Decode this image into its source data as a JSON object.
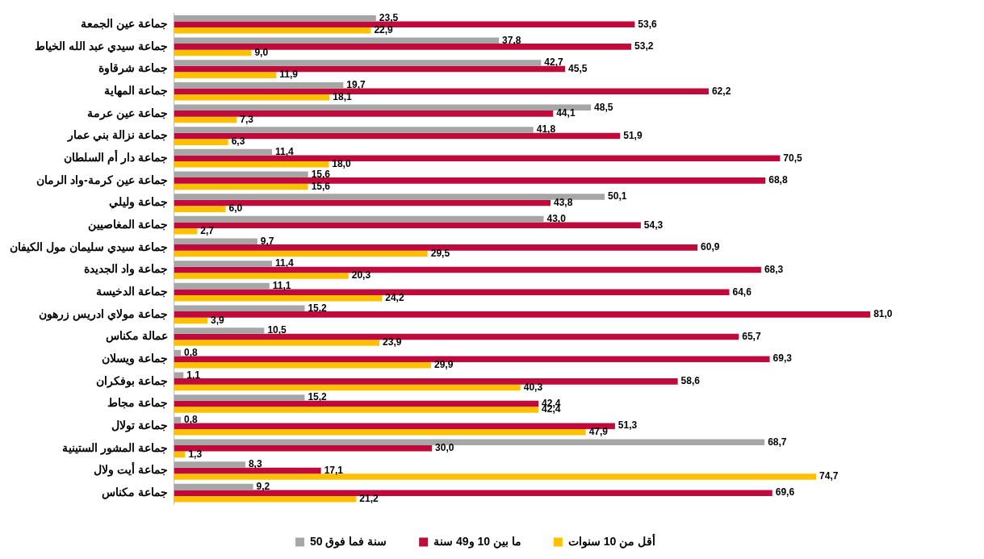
{
  "chart_data": {
    "type": "bar",
    "orientation": "horizontal",
    "legend": "bottom",
    "grid": false,
    "tick_labels": "y",
    "categories": [
      "جماعة عين الجمعة",
      "جماعة سيدي عبد الله الخياط",
      "جماعة شرقاوة",
      "جماعة المهاية",
      "جماعة عين عرمة",
      "جماعة نزالة بني عمار",
      "جماعة دار أم السلطان",
      "جماعة عين كرمة-واد الرمان",
      "جماعة وليلي",
      "جماعة المغاصيين",
      "جماعة سيدي سليمان مول الكيفان",
      "جماعة واد الجديدة",
      "جماعة الدخيسة",
      "جماعة مولاي ادريس زرهون",
      "عمالة مكناس",
      "جماعة ويسلان",
      "جماعة بوفكران",
      "جماعة مجاط",
      "جماعة تولال",
      "جماعة المشور الستينية",
      "جماعة أيت ولال",
      "جماعة مكناس"
    ],
    "series": [
      {
        "name": "50 سنة فما فوق",
        "color": "#a6a6a6",
        "values": [
          23.5,
          37.8,
          42.7,
          19.7,
          48.5,
          41.8,
          11.4,
          15.6,
          50.1,
          43.0,
          9.7,
          11.4,
          11.1,
          15.2,
          10.5,
          0.8,
          1.1,
          15.2,
          0.8,
          68.7,
          8.3,
          9.2
        ],
        "value_labels": [
          "23,5",
          "37,8",
          "42,7",
          "19,7",
          "48,5",
          "41,8",
          "11,4",
          "15,6",
          "50,1",
          "43,0",
          "9,7",
          "11,4",
          "11,1",
          "15,2",
          "10,5",
          "0,8",
          "1,1",
          "15,2",
          "0,8",
          "68,7",
          "8,3",
          "9,2"
        ]
      },
      {
        "name": "ما بين 10 و49 سنة",
        "color": "#c00a3c",
        "values": [
          53.6,
          53.2,
          45.5,
          62.2,
          44.1,
          51.9,
          70.5,
          68.8,
          43.8,
          54.3,
          60.9,
          68.3,
          64.6,
          81.0,
          65.7,
          69.3,
          58.6,
          42.4,
          51.3,
          30.0,
          17.1,
          69.6
        ],
        "value_labels": [
          "53,6",
          "53,2",
          "45,5",
          "62,2",
          "44,1",
          "51,9",
          "70,5",
          "68,8",
          "43,8",
          "54,3",
          "60,9",
          "68,3",
          "64,6",
          "81,0",
          "65,7",
          "69,3",
          "58,6",
          "42,4",
          "51,3",
          "30,0",
          "17,1",
          "69,6"
        ]
      },
      {
        "name": "أقل من 10 سنوات",
        "color": "#ffc000",
        "values": [
          22.9,
          9.0,
          11.9,
          18.1,
          7.3,
          6.3,
          18.0,
          15.6,
          6.0,
          2.7,
          29.5,
          20.3,
          24.2,
          3.9,
          23.9,
          29.9,
          40.3,
          42.4,
          47.9,
          1.3,
          74.7,
          21.2
        ],
        "value_labels": [
          "22,9",
          "9,0",
          "11,9",
          "18,1",
          "7,3",
          "6,3",
          "18,0",
          "15,6",
          "6,0",
          "2,7",
          "29,5",
          "20,3",
          "24,2",
          "3,9",
          "23,9",
          "29,9",
          "40,3",
          "42,4",
          "47,9",
          "1,3",
          "74,7",
          "21,2"
        ]
      }
    ]
  }
}
